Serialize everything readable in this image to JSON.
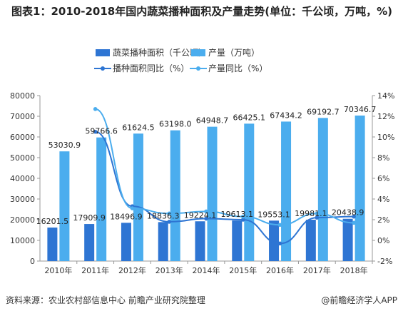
{
  "chart_data": {
    "type": "bar",
    "title": "图表1：2010-2018年国内蔬菜播种面积及产量走势(单位：千公顷，万吨，%)",
    "categories": [
      "2010年",
      "2011年",
      "2012年",
      "2013年",
      "2014年",
      "2015年",
      "2016年",
      "2017年",
      "2018年"
    ],
    "series": [
      {
        "name": "蔬菜播种面积（千公顷）",
        "type": "bar",
        "axis": "left",
        "color": "#2E75D3",
        "values": [
          16201.5,
          17909.9,
          18496.9,
          18836.3,
          19224.1,
          19613.1,
          19553.1,
          19981.1,
          20438.9
        ],
        "labels": [
          "16201.5",
          "17909.9",
          "18496.9",
          "18836.3",
          "19224.1",
          "19613.1",
          "19553.1",
          "19981.1",
          "20438.9"
        ]
      },
      {
        "name": "产量（万吨）",
        "type": "bar",
        "axis": "left",
        "color": "#4BADEE",
        "values": [
          53030.9,
          59766.6,
          61624.5,
          63198.0,
          64948.7,
          66425.1,
          67434.2,
          69192.7,
          70346.7
        ],
        "labels": [
          "53030.9",
          "59766.6",
          "61624.5",
          "63198.0",
          "64948.7",
          "66425.1",
          "67434.2",
          "69192.7",
          "70346.7"
        ]
      },
      {
        "name": "播种面积同比（%）",
        "type": "line",
        "axis": "right",
        "color": "#2E75D3",
        "values": [
          null,
          10.5,
          3.3,
          1.8,
          2.1,
          2.0,
          -0.3,
          2.2,
          2.3
        ]
      },
      {
        "name": "产量同比（%）",
        "type": "line",
        "axis": "right",
        "color": "#4BADEE",
        "values": [
          null,
          12.7,
          3.1,
          2.6,
          2.8,
          2.3,
          1.5,
          2.6,
          1.7
        ]
      }
    ],
    "ylim_left": [
      0,
      80000
    ],
    "yticks_left": [
      "0",
      "10000",
      "20000",
      "30000",
      "40000",
      "50000",
      "60000",
      "70000",
      "80000"
    ],
    "ylim_right": [
      -2,
      14
    ],
    "yticks_right": [
      "-2%",
      "0%",
      "2%",
      "4%",
      "6%",
      "8%",
      "10%",
      "12%",
      "14%"
    ],
    "legend_position": "top",
    "grid": false
  },
  "footer": {
    "source": "资料来源：农业农村部信息中心 前瞻产业研究院整理",
    "brand": "@前瞻经济学人APP"
  }
}
